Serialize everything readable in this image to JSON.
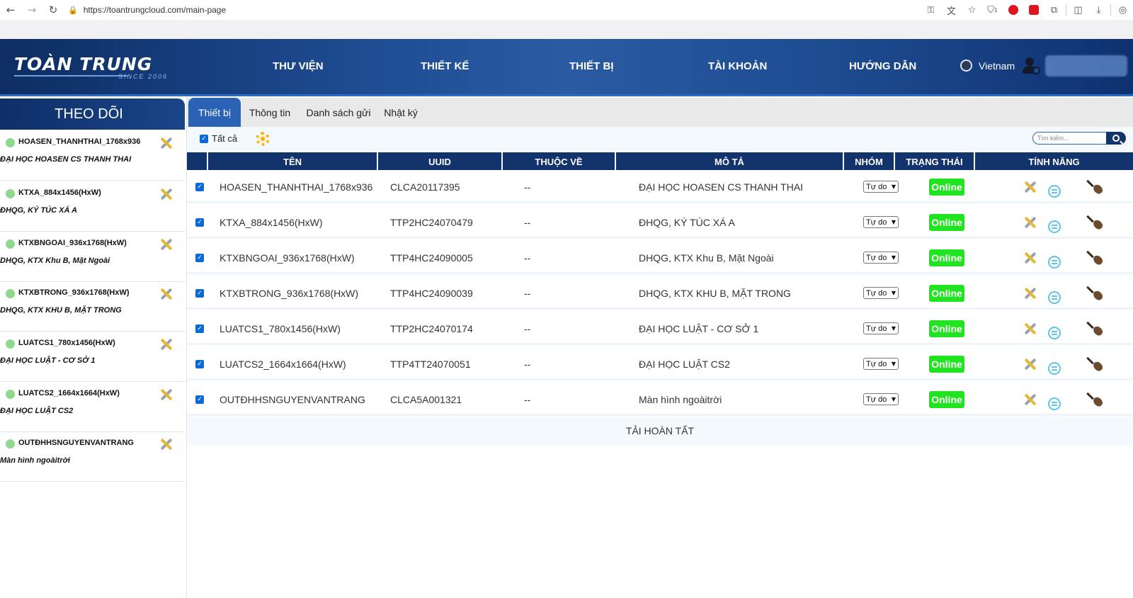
{
  "browser": {
    "url": "https://toantrungcloud.com/main-page",
    "back_icon": "arrow-left",
    "forward_icon": "arrow-right",
    "reload_icon": "reload",
    "shield_badge": "1"
  },
  "header": {
    "logo_text": "TOÀN TRUNG",
    "logo_sub": "SINCE 2006",
    "menu": [
      "THƯ VIỆN",
      "THIẾT KẾ",
      "THIẾT BỊ",
      "TÀI KHOẢN",
      "HƯỚNG DẪN"
    ],
    "language": "Vietnam"
  },
  "sidebar": {
    "title": "THEO DÕI",
    "items": [
      {
        "name": "HOASEN_THANHTHAI_1768x936",
        "desc": "ĐẠI HỌC HOASEN CS THANH THAI"
      },
      {
        "name": "KTXA_884x1456(HxW)",
        "desc": "ĐHQG, KÝ TÚC XÁ A"
      },
      {
        "name": "KTXBNGOAI_936x1768(HxW)",
        "desc": "DHQG, KTX Khu B, Mặt Ngoài"
      },
      {
        "name": "KTXBTRONG_936x1768(HxW)",
        "desc": "DHQG, KTX KHU B, MẶT TRONG"
      },
      {
        "name": "LUATCS1_780x1456(HxW)",
        "desc": "ĐẠI HỌC LUẬT - CƠ SỞ 1"
      },
      {
        "name": "LUATCS2_1664x1664(HxW)",
        "desc": "ĐẠI HỌC LUẬT CS2"
      },
      {
        "name": "OUTĐHHSNGUYENVANTRANG",
        "desc": "Màn hình ngoàitrời"
      }
    ]
  },
  "tabs": [
    "Thiết bị",
    "Thông tin",
    "Danh sách gửi",
    "Nhật ký"
  ],
  "toolbar": {
    "select_all_label": "Tất cả",
    "search_placeholder": "Tìm kiếm..."
  },
  "table": {
    "columns": [
      "TÊN",
      "UUID",
      "THUỘC VỀ",
      "MÔ TẢ",
      "NHÓM",
      "TRẠNG THÁI",
      "TÍNH NĂNG"
    ],
    "rows": [
      {
        "name": "HOASEN_THANHTHAI_1768x936",
        "uuid": "CLCA20117395",
        "owner": "--",
        "desc": "ĐẠI HỌC HOASEN CS THANH THAI",
        "group": "Tự do",
        "status": "Online"
      },
      {
        "name": "KTXA_884x1456(HxW)",
        "uuid": "TTP2HC24070479",
        "owner": "--",
        "desc": "ĐHQG, KÝ TÚC XÁ A",
        "group": "Tự do",
        "status": "Online"
      },
      {
        "name": "KTXBNGOAI_936x1768(HxW)",
        "uuid": "TTP4HC24090005",
        "owner": "--",
        "desc": "DHQG, KTX Khu B, Mặt Ngoài",
        "group": "Tự do",
        "status": "Online"
      },
      {
        "name": "KTXBTRONG_936x1768(HxW)",
        "uuid": "TTP4HC24090039",
        "owner": "--",
        "desc": "DHQG, KTX KHU B, MẶT TRONG",
        "group": "Tự do",
        "status": "Online"
      },
      {
        "name": "LUATCS1_780x1456(HxW)",
        "uuid": "TTP2HC24070174",
        "owner": "--",
        "desc": "ĐẠI HỌC LUẬT - CƠ SỞ 1",
        "group": "Tự do",
        "status": "Online"
      },
      {
        "name": "LUATCS2_1664x1664(HxW)",
        "uuid": "TTP4TT24070051",
        "owner": "--",
        "desc": "ĐẠI HỌC LUẬT CS2",
        "group": "Tự do",
        "status": "Online"
      },
      {
        "name": "OUTĐHHSNGUYENVANTRANG",
        "uuid": "CLCA5A001321",
        "owner": "--",
        "desc": "Màn hình ngoàitrời",
        "group": "Tự do",
        "status": "Online"
      }
    ],
    "footer": "TẢI HOÀN TẤT"
  },
  "colors": {
    "header_dark": "#0d2d63",
    "table_header": "#12336b",
    "active_tab": "#2c62b5",
    "online": "#20e420",
    "status_dot": "#8fd98f"
  }
}
